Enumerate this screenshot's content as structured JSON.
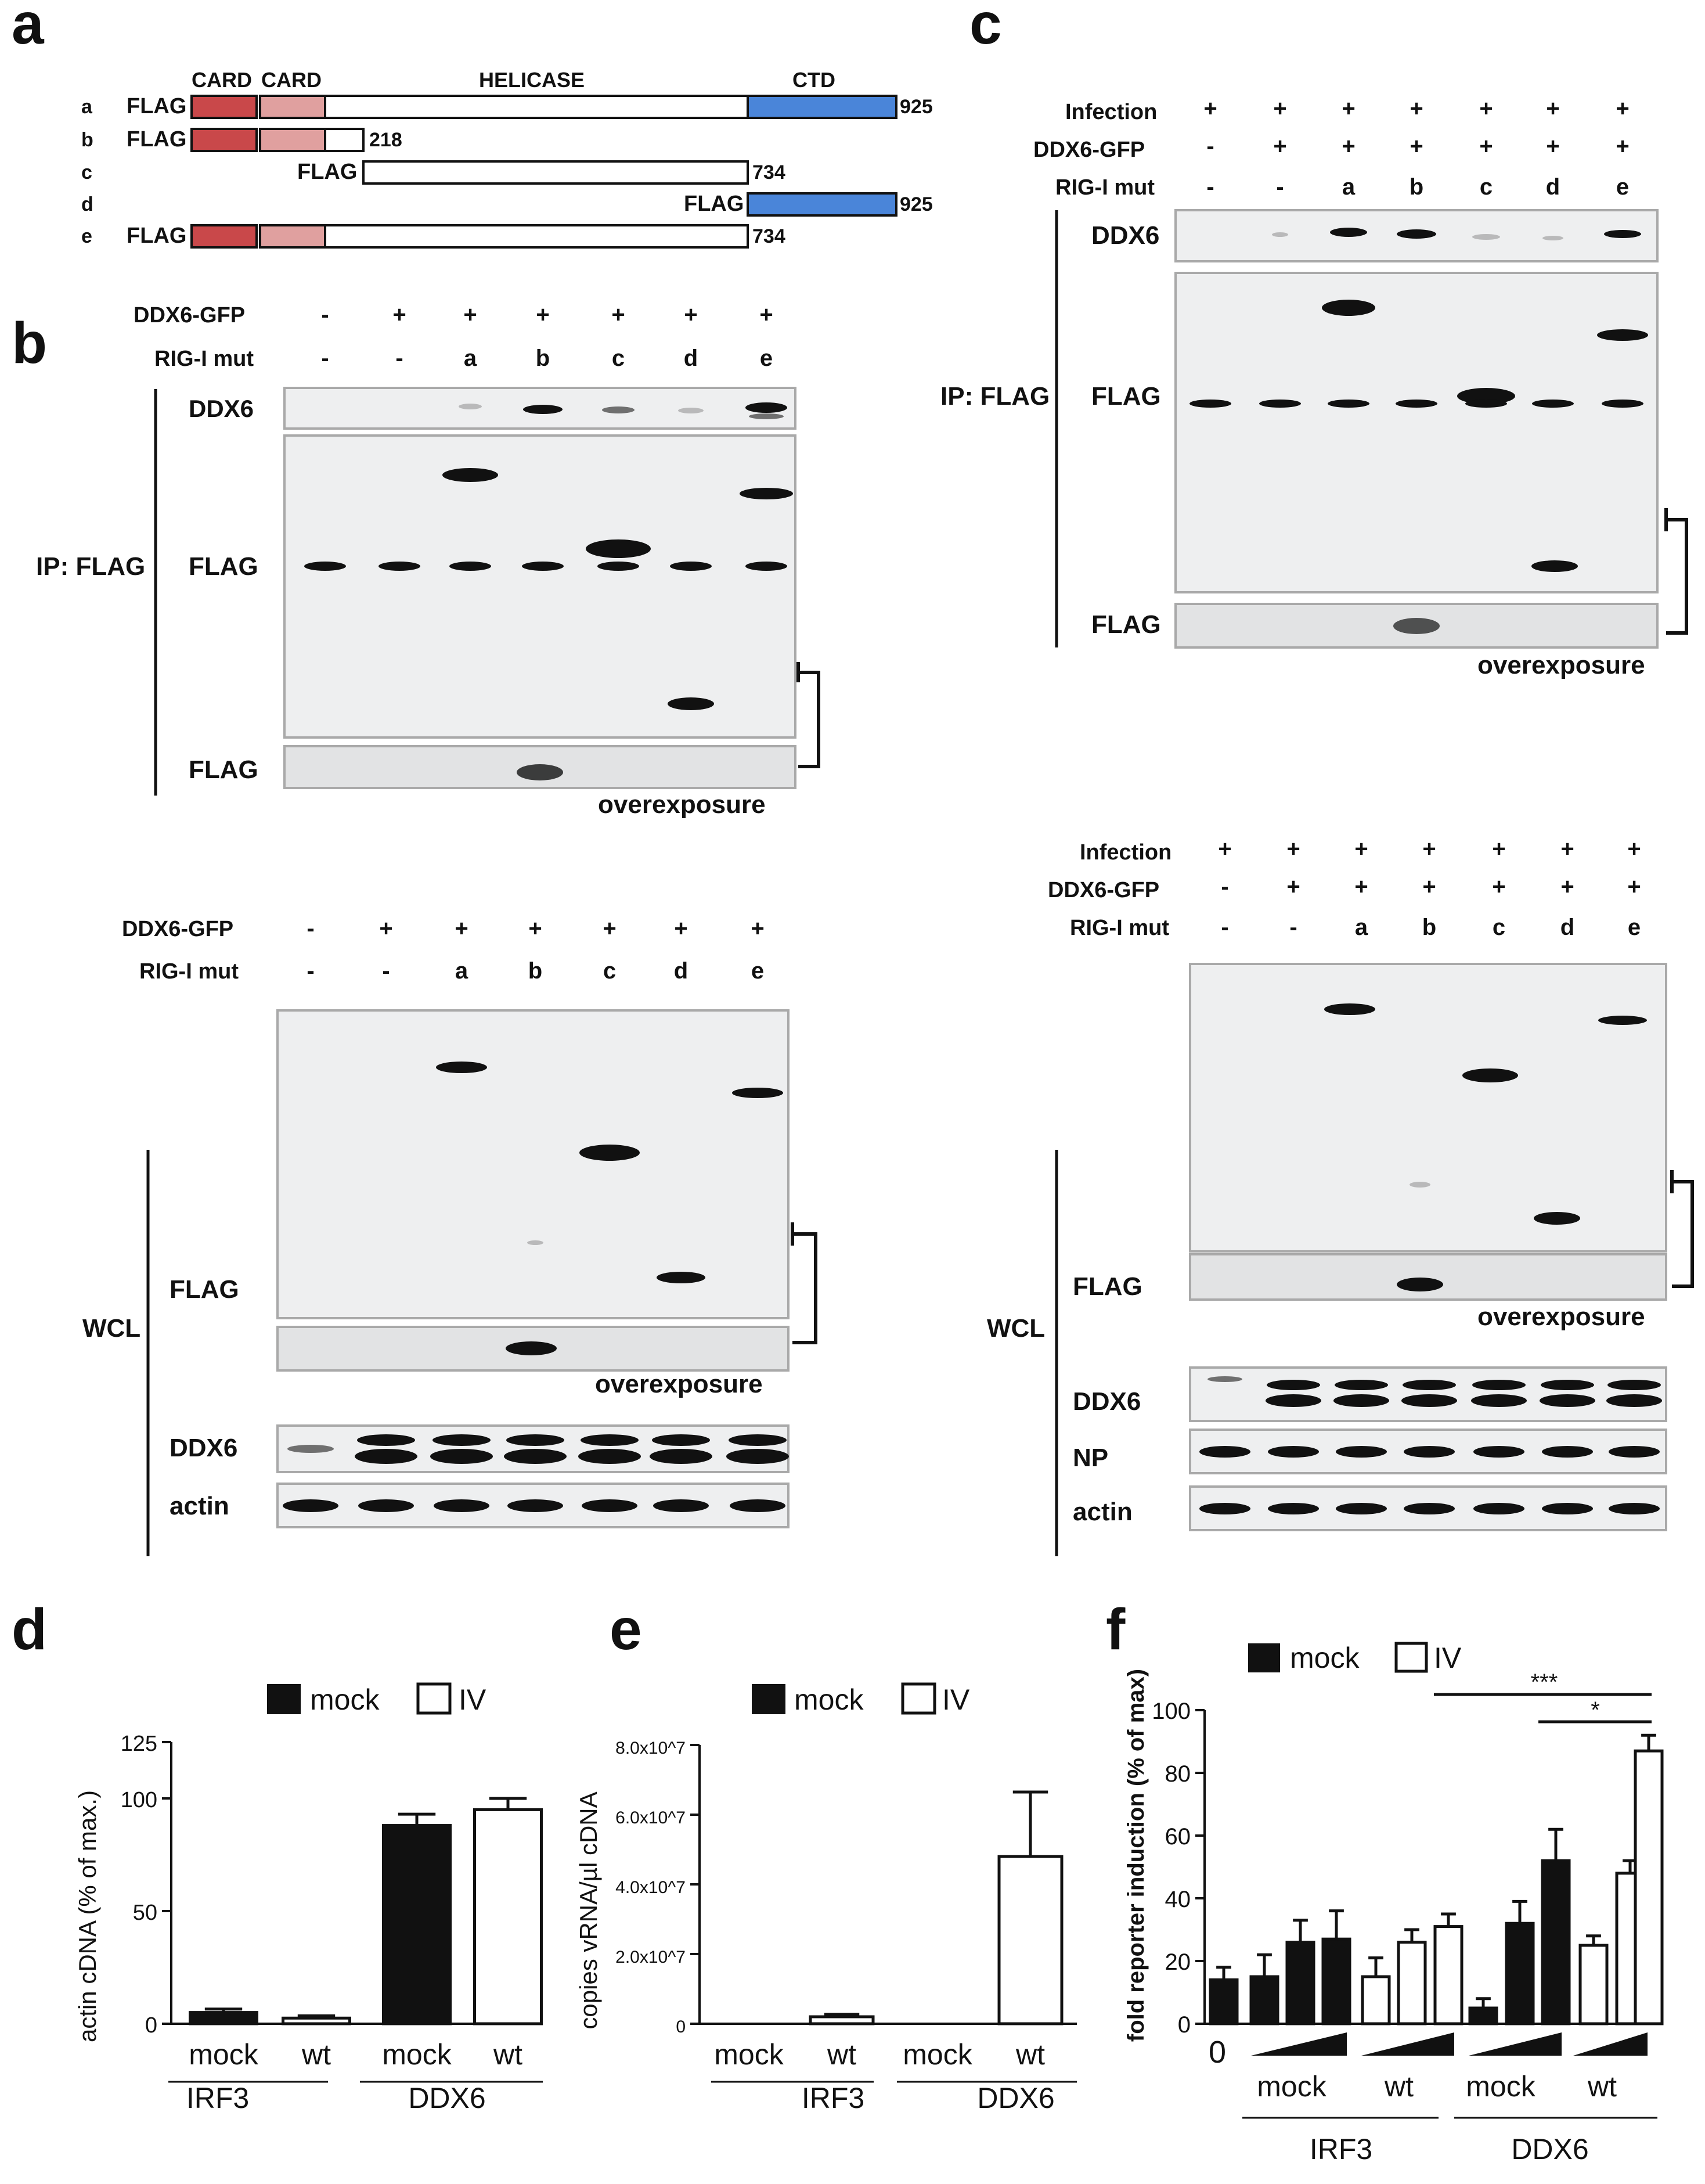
{
  "panels": {
    "a": "a",
    "b": "b",
    "c": "c",
    "d": "d",
    "e": "e",
    "f": "f"
  },
  "schematic": {
    "domains": {
      "card1": "CARD",
      "card2": "CARD",
      "helicase": "HELICASE",
      "ctd": "CTD"
    },
    "tag": "FLAG",
    "constructs": [
      {
        "id": "a",
        "end": "925"
      },
      {
        "id": "b",
        "end": "218"
      },
      {
        "id": "c",
        "end": "734"
      },
      {
        "id": "d",
        "end": "925"
      },
      {
        "id": "e",
        "end": "734"
      }
    ],
    "colors": {
      "card1": "#c9484a",
      "card2": "#e0a09f",
      "ctd": "#4a85d9"
    }
  },
  "blots": {
    "row_labels": {
      "infection": "Infection",
      "ddx6_gfp": "DDX6-GFP",
      "rig_mut": "RIG-I mut"
    },
    "infection_row": [
      "+",
      "+",
      "+",
      "+",
      "+",
      "+",
      "+"
    ],
    "ddx6_row": [
      "-",
      "+",
      "+",
      "+",
      "+",
      "+",
      "+"
    ],
    "mut_row": [
      "-",
      "-",
      "a",
      "b",
      "c",
      "d",
      "e"
    ],
    "labels": {
      "ddx6": "DDX6",
      "flag": "FLAG",
      "ip_flag": "IP: FLAG",
      "wcl": "WCL",
      "actin": "actin",
      "np": "NP",
      "overexposure": "overexposure"
    }
  },
  "legend": {
    "mock": "mock",
    "iv": "IV"
  },
  "groups": {
    "irf3": "IRF3",
    "ddx6": "DDX6"
  },
  "xticks": {
    "mock": "mock",
    "wt": "wt",
    "zero": "0"
  },
  "significance": {
    "s3": "***",
    "s1": "*"
  },
  "chart_data": [
    {
      "panel": "d",
      "type": "bar",
      "ylabel": "actin cDNA (% of max.)",
      "ylim": [
        0,
        125
      ],
      "yticks": [
        "0",
        "50",
        "100",
        "125"
      ],
      "ytick_values": [
        0,
        50,
        100,
        125
      ],
      "categories": [
        "mock",
        "wt",
        "mock",
        "wt"
      ],
      "groups": [
        "IRF3",
        "DDX6"
      ],
      "series_fill": [
        "mock",
        "IV",
        "mock",
        "IV"
      ],
      "values": [
        5,
        2.5,
        88,
        95
      ],
      "errors": [
        1.5,
        1,
        5,
        5
      ]
    },
    {
      "panel": "e",
      "type": "bar",
      "ylabel": "copies vRNA/µl cDNA",
      "ylim": [
        0,
        80000000
      ],
      "yticks": [
        "0",
        "2.0x10^7",
        "4.0x10^7",
        "6.0x10^7",
        "8.0x10^7"
      ],
      "ytick_values": [
        0,
        20000000,
        40000000,
        60000000,
        80000000
      ],
      "categories": [
        "mock",
        "wt",
        "mock",
        "wt"
      ],
      "groups": [
        "IRF3",
        "DDX6"
      ],
      "series_fill": [
        "mock",
        "IV",
        "mock",
        "IV"
      ],
      "values": [
        0,
        2000000,
        0,
        48000000
      ],
      "errors": [
        0,
        700000,
        0,
        18500000
      ]
    },
    {
      "panel": "f",
      "type": "bar",
      "ylabel": "fold reporter induction (% of max)",
      "ylim": [
        0,
        100
      ],
      "yticks": [
        "0",
        "20",
        "40",
        "60",
        "80",
        "100"
      ],
      "ytick_values": [
        0,
        20,
        40,
        60,
        80,
        100
      ],
      "series_fill": [
        "mock",
        "mock",
        "mock",
        "mock",
        "IV",
        "IV",
        "IV",
        "mock",
        "mock",
        "mock",
        "IV",
        "IV",
        "IV"
      ],
      "values": [
        14,
        15,
        26,
        27,
        15,
        26,
        31,
        5,
        32,
        52,
        25,
        48,
        87
      ],
      "errors": [
        4,
        7,
        7,
        9,
        6,
        4,
        4,
        3,
        7,
        10,
        3,
        4,
        5
      ]
    }
  ]
}
